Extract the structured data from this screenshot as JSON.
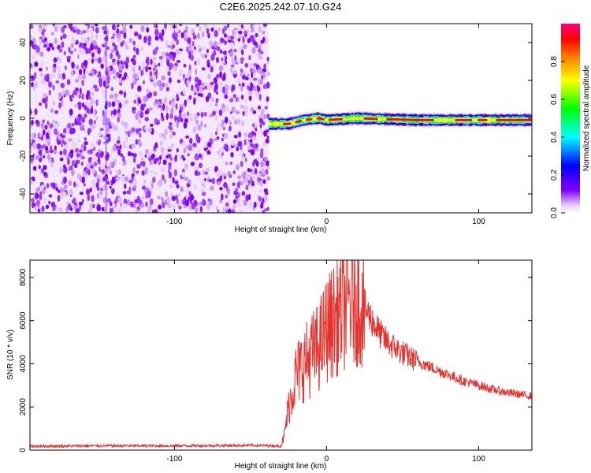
{
  "figure_title": "C2E6.2025.242.07.10.G24",
  "chart_data": [
    {
      "type": "heatmap",
      "name": "spectrogram",
      "xlabel": "Height of straight line (km)",
      "ylabel": "Frequency (Hz)",
      "xlim": [
        -195,
        135
      ],
      "ylim": [
        -50,
        50
      ],
      "x_ticks": [
        -100,
        0,
        100
      ],
      "y_ticks": [
        -40,
        -20,
        0,
        20,
        40
      ],
      "grid": false,
      "colorbar": {
        "label": "Normalized spectral amplitude",
        "range": [
          0,
          1
        ],
        "ticks": [
          0.0,
          0.2,
          0.4,
          0.6,
          0.8
        ],
        "colormap": [
          "#ffffff",
          "#e6ccff",
          "#7f00ff",
          "#0000ff",
          "#00ffff",
          "#00ff00",
          "#ffff00",
          "#ff8000",
          "#ff0000",
          "#ff0080"
        ]
      },
      "regions": [
        {
          "x_range": [
            -195,
            -38
          ],
          "y_range": [
            -50,
            50
          ],
          "amplitude": 0.1,
          "pattern": "noise"
        },
        {
          "x_range": [
            -38,
            135
          ],
          "y_range": [
            -4,
            3
          ],
          "amplitude": 0.9,
          "pattern": "carrier"
        }
      ],
      "carrier_frequency": [
        {
          "x": -38,
          "y": -3
        },
        {
          "x": -25,
          "y": -3
        },
        {
          "x": -15,
          "y": -1
        },
        {
          "x": -5,
          "y": 0
        },
        {
          "x": 0,
          "y": -1
        },
        {
          "x": 20,
          "y": 0
        },
        {
          "x": 60,
          "y": -1
        },
        {
          "x": 100,
          "y": -1
        },
        {
          "x": 135,
          "y": -1
        }
      ]
    },
    {
      "type": "line",
      "name": "snr",
      "xlabel": "Height of straight line (km)",
      "ylabel": "SNR (10 * v/v)",
      "xlim": [
        -195,
        135
      ],
      "ylim": [
        0,
        8800
      ],
      "x_ticks": [
        -100,
        0,
        100
      ],
      "y_ticks": [
        0,
        2000,
        4000,
        6000,
        8000
      ],
      "grid": false,
      "line_color": "#e8322e",
      "series": [
        {
          "x": [
            -195,
            -150,
            -100,
            -50,
            -30,
            -28,
            -25,
            -20,
            -15,
            -10,
            -5,
            0,
            5,
            10,
            15,
            20,
            25,
            30,
            35,
            40,
            50,
            60,
            70,
            80,
            90,
            100,
            110,
            120,
            135
          ],
          "values": [
            180,
            200,
            200,
            220,
            200,
            600,
            2000,
            3500,
            4000,
            4400,
            4800,
            5600,
            6000,
            6500,
            6900,
            7000,
            6600,
            6000,
            5400,
            5000,
            4500,
            4100,
            3800,
            3500,
            3200,
            3000,
            2800,
            2650,
            2500
          ]
        }
      ]
    }
  ]
}
